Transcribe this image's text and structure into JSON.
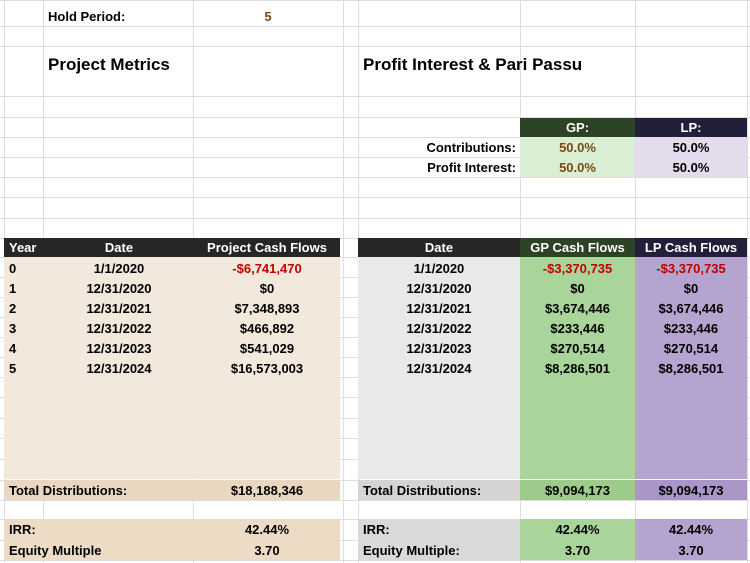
{
  "hold": {
    "label": "Hold Period:",
    "value": "5"
  },
  "sections": {
    "project_metrics": "Project Metrics",
    "profit_interest": "Profit Interest & Pari Passu"
  },
  "split": {
    "gp_header": "GP:",
    "lp_header": "LP:",
    "contributions_label": "Contributions:",
    "profit_interest_label": "Profit Interest:",
    "gp_contributions": "50.0%",
    "lp_contributions": "50.0%",
    "gp_profit": "50.0%",
    "lp_profit": "50.0%"
  },
  "project_table": {
    "headers": [
      "Year",
      "Date",
      "Project Cash Flows"
    ],
    "rows": [
      [
        "0",
        "1/1/2020",
        "-$6,741,470"
      ],
      [
        "1",
        "12/31/2020",
        "$0"
      ],
      [
        "2",
        "12/31/2021",
        "$7,348,893"
      ],
      [
        "3",
        "12/31/2022",
        "$466,892"
      ],
      [
        "4",
        "12/31/2023",
        "$541,029"
      ],
      [
        "5",
        "12/31/2024",
        "$16,573,003"
      ]
    ],
    "total_label": "Total Distributions:",
    "total_value": "$18,188,346",
    "irr_label": "IRR:",
    "irr_value": "42.44%",
    "em_label": "Equity Multiple",
    "em_value": "3.70"
  },
  "partner_table": {
    "headers": [
      "Date",
      "GP Cash Flows",
      "LP Cash Flows"
    ],
    "rows": [
      [
        "1/1/2020",
        "-$3,370,735",
        "-$3,370,735"
      ],
      [
        "12/31/2020",
        "$0",
        "$0"
      ],
      [
        "12/31/2021",
        "$3,674,446",
        "$3,674,446"
      ],
      [
        "12/31/2022",
        "$233,446",
        "$233,446"
      ],
      [
        "12/31/2023",
        "$270,514",
        "$270,514"
      ],
      [
        "12/31/2024",
        "$8,286,501",
        "$8,286,501"
      ]
    ],
    "total_label": "Total Distributions:",
    "gp_total": "$9,094,173",
    "lp_total": "$9,094,173",
    "irr_label": "IRR:",
    "gp_irr": "42.44%",
    "lp_irr": "42.44%",
    "em_label": "Equity Multiple:",
    "gp_em": "3.70",
    "lp_em": "3.70"
  },
  "colors": {
    "project_fill": "#f3e8dc",
    "project_summary": "#e9d8c1",
    "partner_fill": "#e9e9e9",
    "partner_summary": "#d4d4d4",
    "gp_fill": "#a9d49a",
    "gp_light": "#d9eed2",
    "lp_fill": "#b5a4cf",
    "lp_light": "#e4dced",
    "negative": "#c00000",
    "brown_value": "#7a4a12"
  }
}
